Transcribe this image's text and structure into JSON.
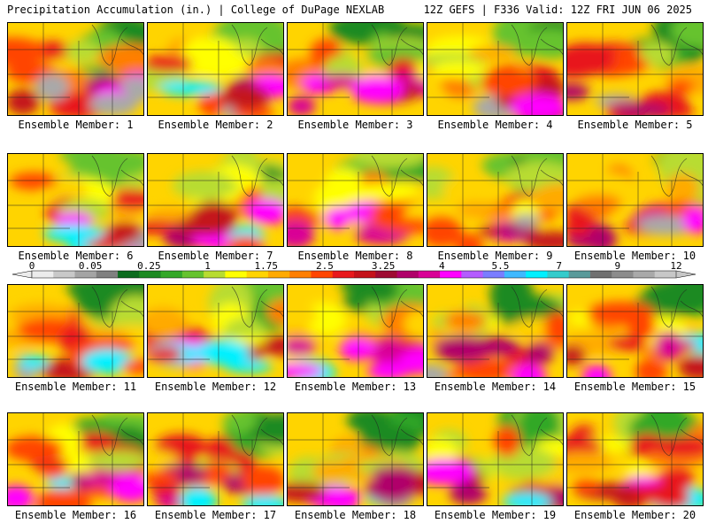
{
  "header": {
    "title": "Precipitation Accumulation (in.) | College of DuPage NEXLAB",
    "run_info": "12Z GEFS | F336 Valid: 12Z FRI JUN 06 2025"
  },
  "colorbar": {
    "labels": [
      "0",
      "0.05",
      "0.25",
      "1",
      "1.75",
      "2.5",
      "3.25",
      "4",
      "5.5",
      "7",
      "9",
      "12"
    ],
    "colors": [
      "#ececec",
      "#c8c8c8",
      "#a4a4a4",
      "#808080",
      "#0b6b1e",
      "#1c8a22",
      "#33a828",
      "#66c32e",
      "#b8dc30",
      "#ffff00",
      "#ffd400",
      "#ffaa00",
      "#ff7f00",
      "#ff4500",
      "#e8191c",
      "#c4121a",
      "#9e0b33",
      "#b0006a",
      "#d90096",
      "#ff00ff",
      "#b45cff",
      "#7a7dff",
      "#3fb9ff",
      "#00f0ff",
      "#33cccc",
      "#5a9a9a",
      "#707070",
      "#8c8c8c",
      "#a9a9a9",
      "#c7c7c7"
    ]
  },
  "members": [
    {
      "label": "Ensemble Member: 1"
    },
    {
      "label": "Ensemble Member: 2"
    },
    {
      "label": "Ensemble Member: 3"
    },
    {
      "label": "Ensemble Member: 4"
    },
    {
      "label": "Ensemble Member: 5"
    },
    {
      "label": "Ensemble Member: 6"
    },
    {
      "label": "Ensemble Member: 7"
    },
    {
      "label": "Ensemble Member: 8"
    },
    {
      "label": "Ensemble Member: 9"
    },
    {
      "label": "Ensemble Member: 10"
    },
    {
      "label": "Ensemble Member: 11"
    },
    {
      "label": "Ensemble Member: 12"
    },
    {
      "label": "Ensemble Member: 13"
    },
    {
      "label": "Ensemble Member: 14"
    },
    {
      "label": "Ensemble Member: 15"
    },
    {
      "label": "Ensemble Member: 16"
    },
    {
      "label": "Ensemble Member: 17"
    },
    {
      "label": "Ensemble Member: 18"
    },
    {
      "label": "Ensemble Member: 19"
    },
    {
      "label": "Ensemble Member: 20"
    }
  ]
}
